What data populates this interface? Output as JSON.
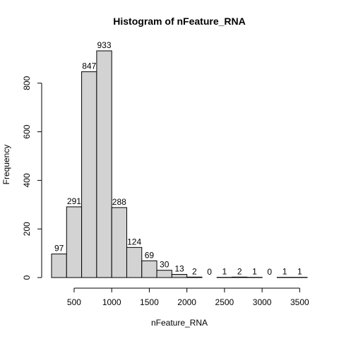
{
  "chart_data": {
    "type": "bar",
    "title": "Histogram of nFeature_RNA",
    "xlabel": "nFeature_RNA",
    "ylabel": "Frequency",
    "bin_edges": [
      200,
      400,
      600,
      800,
      1000,
      1200,
      1400,
      1600,
      1800,
      2000,
      2200,
      2400,
      2600,
      2800,
      3000,
      3200,
      3400,
      3600
    ],
    "values": [
      97,
      291,
      847,
      933,
      288,
      124,
      69,
      30,
      13,
      2,
      0,
      1,
      2,
      1,
      0,
      1,
      1
    ],
    "xticks": [
      500,
      1000,
      1500,
      2000,
      2500,
      3000,
      3500
    ],
    "yticks": [
      0,
      200,
      400,
      600,
      800
    ],
    "xlim": [
      200,
      3600
    ],
    "ylim": [
      0,
      933
    ],
    "grid": false,
    "bar_color": "#d3d3d3",
    "edge_color": "#000000"
  }
}
